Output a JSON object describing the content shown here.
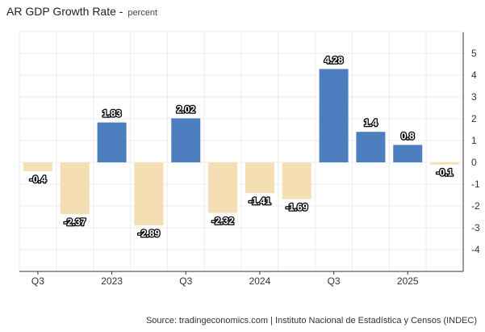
{
  "title": "AR GDP Growth Rate",
  "unit": "percent",
  "source": "Source: tradingeconomics.com | Instituto Nacional de Estadística y Censos (INDEC)",
  "colors": {
    "positive": "#4d7ebf",
    "negative": "#f5deb3",
    "grid": "#ececec"
  },
  "chart_data": {
    "type": "bar",
    "categories": [
      "Q3 2022",
      "Q4 2022",
      "Q1 2023",
      "Q2 2023",
      "Q3 2023",
      "Q4 2023",
      "Q1 2024",
      "Q2 2024",
      "Q3 2024",
      "Q4 2024",
      "Q1 2025",
      "Q2 2025"
    ],
    "values": [
      -0.4,
      -2.37,
      1.83,
      -2.89,
      2.02,
      -2.32,
      -1.41,
      -1.69,
      4.28,
      1.4,
      0.8,
      -0.1
    ],
    "data_labels": [
      "-0.4",
      "-2.37",
      "1.83",
      "-2.89",
      "2.02",
      "-2.32",
      "-1.41",
      "-1.69",
      "4.28",
      "1.4",
      "0.8",
      "-0.1"
    ],
    "x_ticks": [
      "Q3",
      "2023",
      "Q3",
      "2024",
      "Q3",
      "2025"
    ],
    "y_ticks": [
      5,
      4,
      3,
      2,
      1,
      0,
      -1,
      -2,
      -3,
      -4
    ],
    "ylim": [
      -5,
      6
    ],
    "y_axis_side": "right",
    "grid": true,
    "legend": "none"
  }
}
